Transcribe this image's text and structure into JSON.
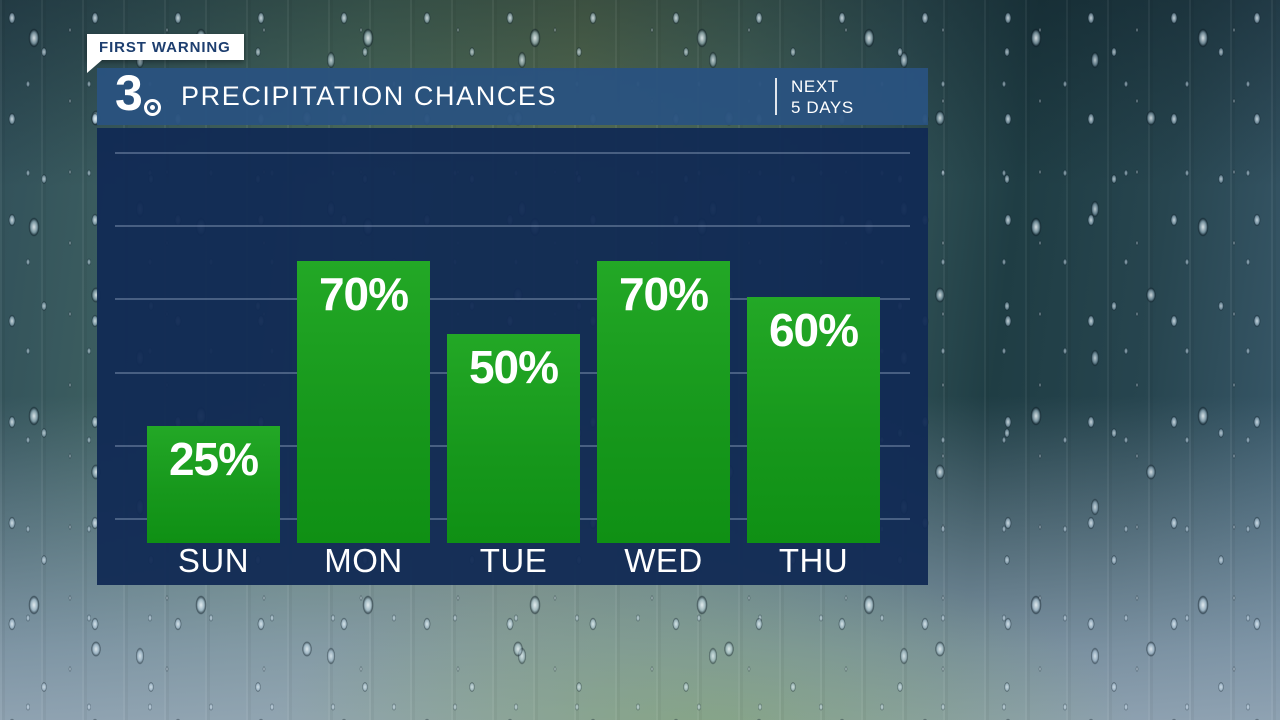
{
  "badge": {
    "label": "FIRST WARNING"
  },
  "header": {
    "station_logo": "3",
    "logo_icon": "cbs-eye-icon",
    "title": "PRECIPITATION CHANCES",
    "period_line1": "NEXT",
    "period_line2": "5 DAYS"
  },
  "chart_data": {
    "type": "bar",
    "title": "PRECIPITATION CHANCES",
    "subtitle": "NEXT 5 DAYS",
    "categories": [
      "SUN",
      "MON",
      "TUE",
      "WED",
      "THU"
    ],
    "values": [
      25,
      70,
      50,
      70,
      60
    ],
    "unit": "%",
    "xlabel": "",
    "ylabel": "",
    "ylim": [
      0,
      100
    ],
    "grid": true,
    "gridline_count": 6,
    "legend": "none",
    "bar_color": "#18a01c",
    "value_label_position": "inside-top"
  },
  "colors": {
    "header_blue": "#2a527f",
    "panel_navy": "#112a54",
    "bar_green": "#18a01c",
    "badge_bg": "#ffffff",
    "badge_text": "#1d3e6f",
    "text_white": "#ffffff",
    "gridline": "#acbed6"
  }
}
